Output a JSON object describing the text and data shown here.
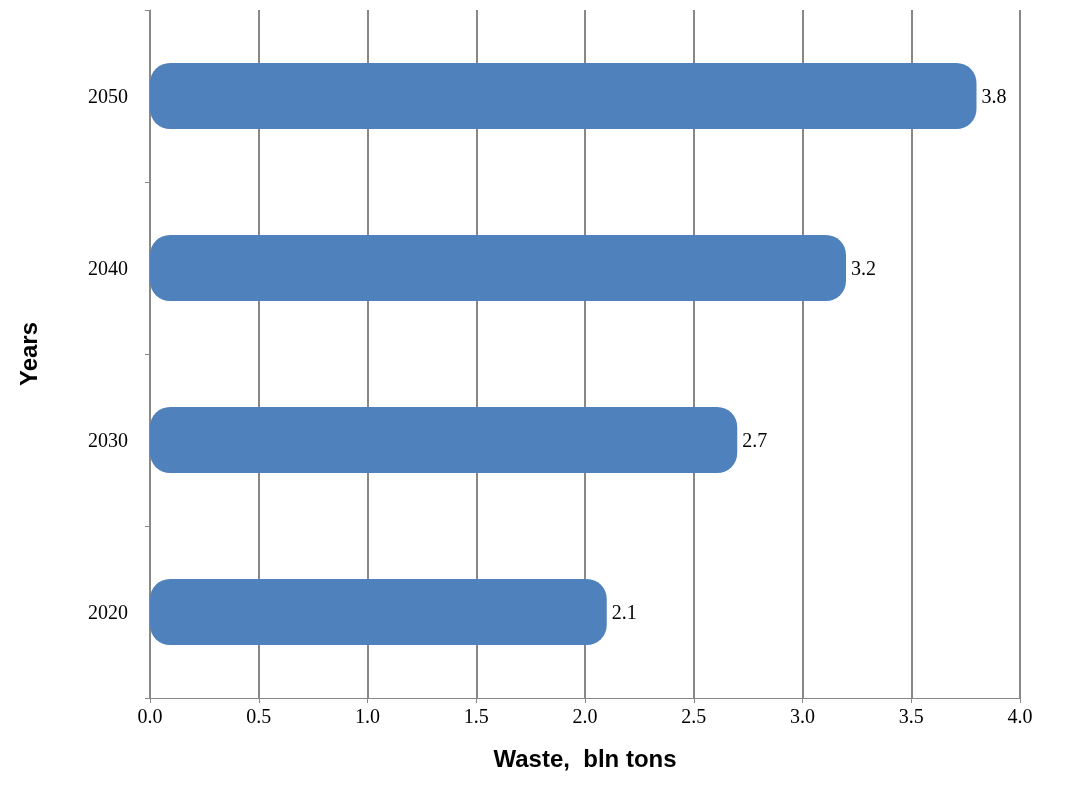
{
  "chart_data": {
    "type": "bar",
    "orientation": "horizontal",
    "categories": [
      "2050",
      "2040",
      "2030",
      "2020"
    ],
    "values": [
      3.8,
      3.2,
      2.7,
      2.1
    ],
    "color": "#4f81bd",
    "data_labels": true,
    "xlabel": "Waste,  bln tons",
    "ylabel": "Years",
    "xlim": [
      0,
      4
    ],
    "xticks": [
      {
        "value": 0,
        "label": "0.0"
      },
      {
        "value": 0.5,
        "label": "0.5"
      },
      {
        "value": 1,
        "label": "1.0"
      },
      {
        "value": 1.5,
        "label": "1.5"
      },
      {
        "value": 2,
        "label": "2.0"
      },
      {
        "value": 2.5,
        "label": "2.5"
      },
      {
        "value": 3,
        "label": "3.0"
      },
      {
        "value": 3.5,
        "label": "3.5"
      },
      {
        "value": 4,
        "label": "4.0"
      }
    ],
    "grid": "x"
  }
}
